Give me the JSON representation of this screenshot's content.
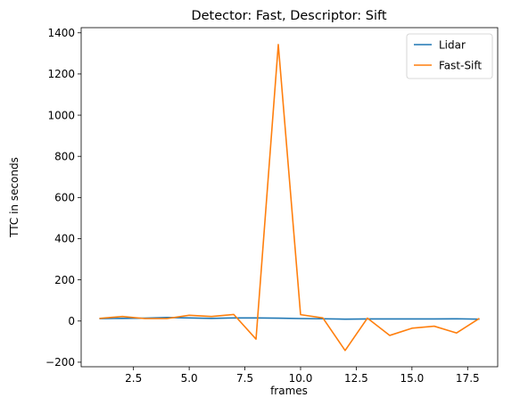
{
  "chart_data": {
    "type": "line",
    "title": "Detector: Fast, Descriptor: Sift",
    "xlabel": "frames",
    "ylabel": "TTC in seconds",
    "xlim": [
      0.15,
      18.85
    ],
    "ylim": [
      -222,
      1425
    ],
    "x_ticks": [
      2.5,
      5.0,
      7.5,
      10.0,
      12.5,
      15.0,
      17.5
    ],
    "x_tick_labels": [
      "2.5",
      "5.0",
      "7.5",
      "10.0",
      "12.5",
      "15.0",
      "17.5"
    ],
    "y_ticks": [
      -200,
      0,
      200,
      400,
      600,
      800,
      1000,
      1200,
      1400
    ],
    "y_tick_labels": [
      "−200",
      "0",
      "200",
      "400",
      "600",
      "800",
      "1000",
      "1200",
      "1400"
    ],
    "grid": false,
    "legend_position": "top-right",
    "x": [
      1,
      2,
      3,
      4,
      5,
      6,
      7,
      8,
      9,
      10,
      11,
      12,
      13,
      14,
      15,
      16,
      17,
      18
    ],
    "series": [
      {
        "name": "Lidar",
        "color": "#1f77b4",
        "values": [
          12,
          13,
          14,
          17,
          15,
          13,
          15,
          15,
          14,
          12,
          11,
          9,
          10,
          10,
          10,
          10,
          11,
          9
        ]
      },
      {
        "name": "Fast-Sift",
        "color": "#ff7f0e",
        "values": [
          13,
          22,
          12,
          12,
          28,
          22,
          32,
          -88,
          1343,
          31,
          15,
          -143,
          14,
          -70,
          -35,
          -25,
          -58,
          11
        ]
      }
    ]
  }
}
